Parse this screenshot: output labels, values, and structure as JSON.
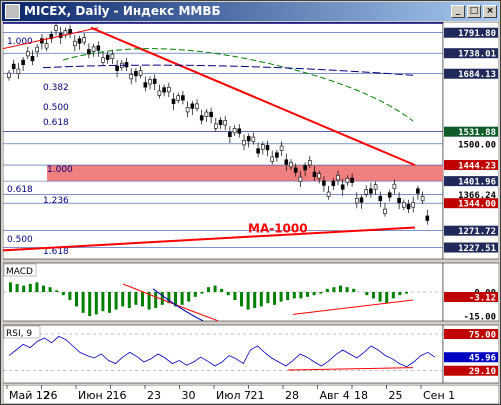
{
  "window": {
    "title": "MICEX, Daily - Индекс ММВБ"
  },
  "price_panel": {
    "y_labels": [
      {
        "text": "1791.80",
        "value": 1791.8,
        "bg": "#1f2a5a",
        "fg": "#ffffff"
      },
      {
        "text": "1738.01",
        "value": 1738.01,
        "bg": "#1f2a5a",
        "fg": "#ffffff"
      },
      {
        "text": "1684.13",
        "value": 1684.13,
        "bg": "#1f2a5a",
        "fg": "#ffffff"
      },
      {
        "text": "1531.88",
        "value": 1531.88,
        "bg": "#0d5c2a",
        "fg": "#ffffff"
      },
      {
        "text": "1500.00",
        "value": 1500.0,
        "bg": "",
        "fg": "#000000"
      },
      {
        "text": "1444.23",
        "value": 1444.23,
        "bg": "#c00000",
        "fg": "#ffffff"
      },
      {
        "text": "1401.96",
        "value": 1401.96,
        "bg": "#1f2a5a",
        "fg": "#ffffff"
      },
      {
        "text": "1366.24",
        "value": 1366.24,
        "bg": "#ffffff",
        "fg": "#000000"
      },
      {
        "text": "1344.00",
        "value": 1344.0,
        "bg": "#c00000",
        "fg": "#ffffff"
      },
      {
        "text": "1271.72",
        "value": 1271.72,
        "bg": "#1f2a5a",
        "fg": "#ffffff"
      },
      {
        "text": "1227.51",
        "value": 1227.51,
        "bg": "#1f2a5a",
        "fg": "#ffffff"
      }
    ],
    "fib_upper": [
      "1.000",
      "0.382",
      "0.500",
      "0.618"
    ],
    "fib_lower": [
      "1.000",
      "0.618",
      "1.236",
      "0.500",
      "1.618"
    ],
    "ma_label": "MA-1000",
    "colors": {
      "resistance": "#ff0000",
      "zone": "#f08080",
      "level": "#000080",
      "ma_green": "#008000"
    }
  },
  "macd_panel": {
    "title": "MACD",
    "y_labels": [
      {
        "text": "0.00",
        "value": 0,
        "bg": "",
        "fg": "#000000"
      },
      {
        "text": "-3.12",
        "value": -3.12,
        "bg": "#c00000",
        "fg": "#ffffff"
      },
      {
        "text": "-15.00",
        "value": -15,
        "bg": "",
        "fg": "#000000"
      }
    ],
    "histogram": [
      6,
      5,
      4,
      5,
      6,
      4,
      3,
      1,
      -2,
      -5,
      -9,
      -13,
      -15,
      -14,
      -12,
      -13,
      -11,
      -9,
      -10,
      -8,
      -9,
      -11,
      -10,
      -8,
      -7,
      -9,
      -8,
      -6,
      -3,
      -1,
      3,
      4,
      2,
      -2,
      -5,
      -9,
      -11,
      -10,
      -9,
      -7,
      -8,
      -6,
      -5,
      -4,
      -4,
      -3,
      -2,
      -1,
      2,
      3,
      4,
      3,
      2,
      0,
      -2,
      -4,
      -6,
      -7,
      -4,
      -2,
      -1
    ]
  },
  "rsi_panel": {
    "title": "RSI, 9",
    "y_labels": [
      {
        "text": "75.00",
        "value": 75,
        "bg": "#c00000",
        "fg": "#ffffff"
      },
      {
        "text": "45.96",
        "value": 45.96,
        "bg": "#0000c0",
        "fg": "#ffffff"
      },
      {
        "text": "29.10",
        "value": 29.1,
        "bg": "#c00000",
        "fg": "#ffffff"
      }
    ],
    "series": [
      48,
      55,
      62,
      58,
      66,
      70,
      64,
      72,
      68,
      60,
      52,
      48,
      45,
      50,
      42,
      38,
      46,
      52,
      47,
      40,
      44,
      50,
      45,
      38,
      42,
      36,
      40,
      46,
      41,
      35,
      40,
      48,
      44,
      38,
      55,
      60,
      52,
      45,
      40,
      35,
      42,
      50,
      46,
      40,
      35,
      41,
      49,
      55,
      50,
      45,
      52,
      60,
      55,
      48,
      44,
      38,
      34,
      40,
      48,
      52,
      46
    ]
  },
  "x_axis": {
    "labels": [
      "Май 12",
      "26",
      "Июн 2",
      "16",
      "23",
      "30",
      "Июл 7",
      "21",
      "28",
      "Авг 4",
      "18",
      "25",
      "Сен 1"
    ]
  }
}
